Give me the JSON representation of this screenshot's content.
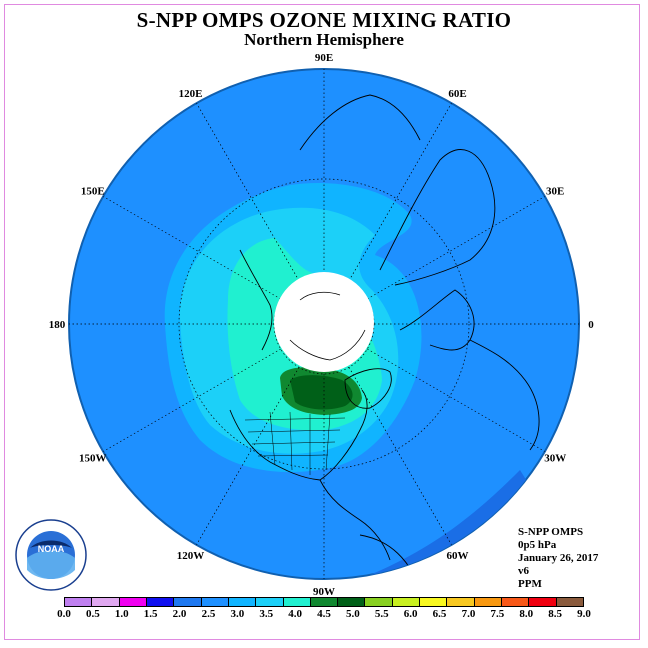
{
  "title": "S-NPP OMPS OZONE MIXING RATIO",
  "subtitle": "Northern Hemisphere",
  "longitude_labels": [
    {
      "label": "90E",
      "lon": 90
    },
    {
      "label": "60E",
      "lon": 60
    },
    {
      "label": "30E",
      "lon": 30
    },
    {
      "label": "0",
      "lon": 0
    },
    {
      "label": "30W",
      "lon": -30
    },
    {
      "label": "60W",
      "lon": -60
    },
    {
      "label": "90W",
      "lon": -90
    },
    {
      "label": "120W",
      "lon": -120
    },
    {
      "label": "150W",
      "lon": -150
    },
    {
      "label": "180",
      "lon": 180
    },
    {
      "label": "150E",
      "lon": 150
    },
    {
      "label": "120E",
      "lon": 120
    }
  ],
  "info": {
    "instrument": "S-NPP OMPS",
    "level": "0p5 hPa",
    "date": "January 26, 2017",
    "version": "v6",
    "units": "PPM"
  },
  "logo": {
    "text": "NOAA",
    "ring_text": "NATIONAL OCEANIC AND ATMOSPHERIC ADMINISTRATION · U.S. DEPARTMENT OF COMMERCE"
  },
  "colorbar": {
    "ticks": [
      "0.0",
      "0.5",
      "1.0",
      "1.5",
      "2.0",
      "2.5",
      "3.0",
      "3.5",
      "4.0",
      "4.5",
      "5.0",
      "5.5",
      "6.0",
      "6.5",
      "7.0",
      "7.5",
      "8.0",
      "8.5",
      "9.0"
    ],
    "colors": [
      "#c080f0",
      "#e0a8f0",
      "#f000f0",
      "#1010f0",
      "#1e78f0",
      "#1e90ff",
      "#10b4ff",
      "#1cd0f8",
      "#20f0d0",
      "#108830",
      "#006018",
      "#88d020",
      "#c8f020",
      "#f8f820",
      "#f8c820",
      "#f89810",
      "#f85818",
      "#f00010",
      "#8a5a3c"
    ]
  }
}
